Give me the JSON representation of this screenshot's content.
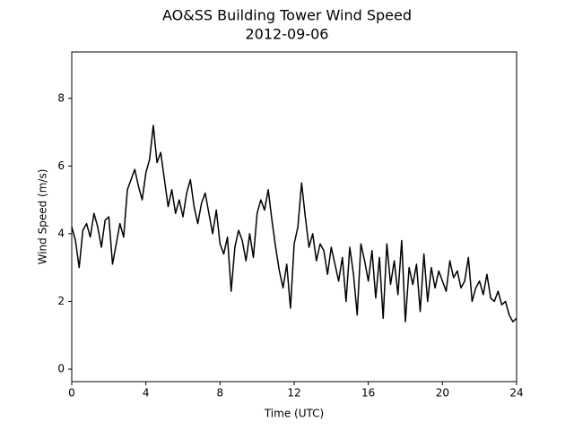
{
  "chart_data": {
    "type": "line",
    "title": "AO&SS Building Tower Wind Speed",
    "subtitle": "2012-09-06",
    "x_label": "Time (UTC)",
    "y_label": "Wind Speed (m/s)",
    "xlim": [
      0,
      24
    ],
    "xticks": [
      0,
      4,
      8,
      12,
      16,
      20,
      24
    ],
    "ylim": [
      -0.37,
      9.37
    ],
    "yticks": [
      0,
      2,
      4,
      6,
      8
    ],
    "grid": false,
    "x": [
      0.0,
      0.2,
      0.4,
      0.6,
      0.8,
      1.0,
      1.2,
      1.4,
      1.6,
      1.8,
      2.0,
      2.2,
      2.4,
      2.6,
      2.8,
      3.0,
      3.2,
      3.4,
      3.6,
      3.8,
      4.0,
      4.2,
      4.4,
      4.6,
      4.8,
      5.0,
      5.2,
      5.4,
      5.6,
      5.8,
      6.0,
      6.2,
      6.4,
      6.6,
      6.8,
      7.0,
      7.2,
      7.4,
      7.6,
      7.8,
      8.0,
      8.2,
      8.4,
      8.6,
      8.8,
      9.0,
      9.2,
      9.4,
      9.6,
      9.8,
      10.0,
      10.2,
      10.4,
      10.6,
      10.8,
      11.0,
      11.2,
      11.4,
      11.6,
      11.8,
      12.0,
      12.2,
      12.4,
      12.6,
      12.8,
      13.0,
      13.2,
      13.4,
      13.6,
      13.8,
      14.0,
      14.2,
      14.4,
      14.6,
      14.8,
      15.0,
      15.2,
      15.4,
      15.6,
      15.8,
      16.0,
      16.2,
      16.4,
      16.6,
      16.8,
      17.0,
      17.2,
      17.4,
      17.6,
      17.8,
      18.0,
      18.2,
      18.4,
      18.6,
      18.8,
      19.0,
      19.2,
      19.4,
      19.6,
      19.8,
      20.0,
      20.2,
      20.4,
      20.6,
      20.8,
      21.0,
      21.2,
      21.4,
      21.6,
      21.8,
      22.0,
      22.2,
      22.4,
      22.6,
      22.8,
      23.0,
      23.2,
      23.4,
      23.6,
      23.8,
      24.0
    ],
    "series": [
      {
        "name": "Wind Speed",
        "color": "#000000",
        "values": [
          4.2,
          3.8,
          3.0,
          4.1,
          4.3,
          3.9,
          4.6,
          4.2,
          3.6,
          4.4,
          4.5,
          3.1,
          3.7,
          4.3,
          3.9,
          5.3,
          5.6,
          5.9,
          5.4,
          5.0,
          5.8,
          6.2,
          7.2,
          6.1,
          6.4,
          5.6,
          4.8,
          5.3,
          4.6,
          5.0,
          4.5,
          5.2,
          5.6,
          4.8,
          4.3,
          4.9,
          5.2,
          4.6,
          4.0,
          4.7,
          3.7,
          3.4,
          3.9,
          2.3,
          3.6,
          4.1,
          3.8,
          3.2,
          4.0,
          3.3,
          4.6,
          5.0,
          4.7,
          5.3,
          4.4,
          3.6,
          2.9,
          2.4,
          3.1,
          1.8,
          3.7,
          4.2,
          5.5,
          4.5,
          3.6,
          4.0,
          3.2,
          3.7,
          3.5,
          2.8,
          3.6,
          3.1,
          2.6,
          3.3,
          2.0,
          3.6,
          2.8,
          1.6,
          3.7,
          3.2,
          2.6,
          3.5,
          2.1,
          3.3,
          1.5,
          3.7,
          2.5,
          3.2,
          2.2,
          3.8,
          1.4,
          3.0,
          2.5,
          3.1,
          1.7,
          3.4,
          2.0,
          3.0,
          2.4,
          2.9,
          2.6,
          2.3,
          3.2,
          2.7,
          2.9,
          2.4,
          2.6,
          3.3,
          2.0,
          2.4,
          2.6,
          2.2,
          2.8,
          2.1,
          2.0,
          2.3,
          1.9,
          2.0,
          1.6,
          1.4,
          1.5
        ]
      }
    ]
  }
}
